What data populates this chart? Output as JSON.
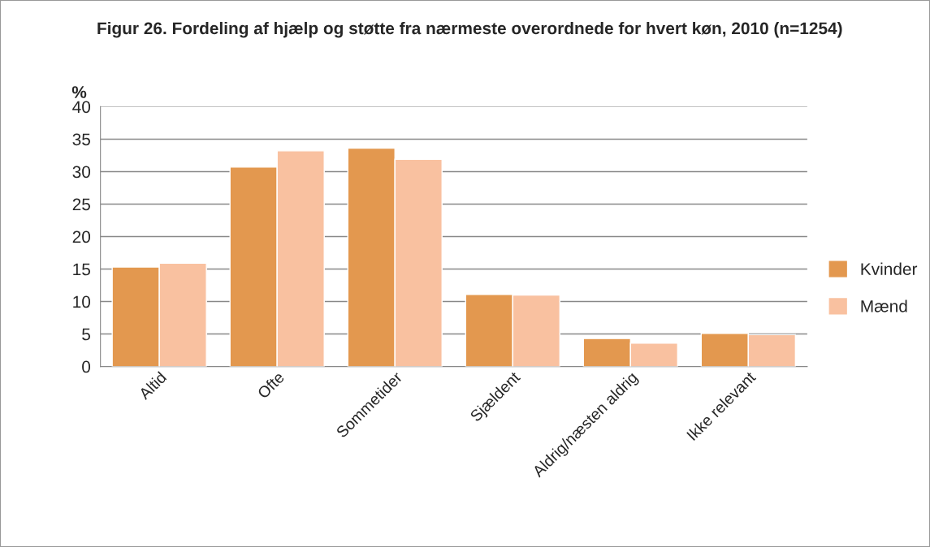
{
  "chart_data": {
    "type": "bar",
    "title": "Figur 26. Fordeling af hjælp og støtte fra nærmeste overordnede for hvert køn, 2010 (n=1254)",
    "ylabel": "%",
    "categories": [
      "Altid",
      "Ofte",
      "Sommetider",
      "Sjældent",
      "Aldrig/næsten aldrig",
      "Ikke relevant"
    ],
    "series": [
      {
        "name": "Kvinder",
        "color": "#e3984f",
        "values": [
          15.3,
          30.7,
          33.6,
          11.1,
          4.3,
          5.1
        ]
      },
      {
        "name": "Mænd",
        "color": "#f9c1a0",
        "values": [
          15.9,
          33.2,
          31.9,
          11.0,
          3.6,
          4.9
        ]
      }
    ],
    "ylim": [
      0,
      40
    ],
    "yticks": [
      0,
      5,
      10,
      15,
      20,
      25,
      30,
      35,
      40
    ],
    "grid": "y",
    "legend": "right"
  }
}
